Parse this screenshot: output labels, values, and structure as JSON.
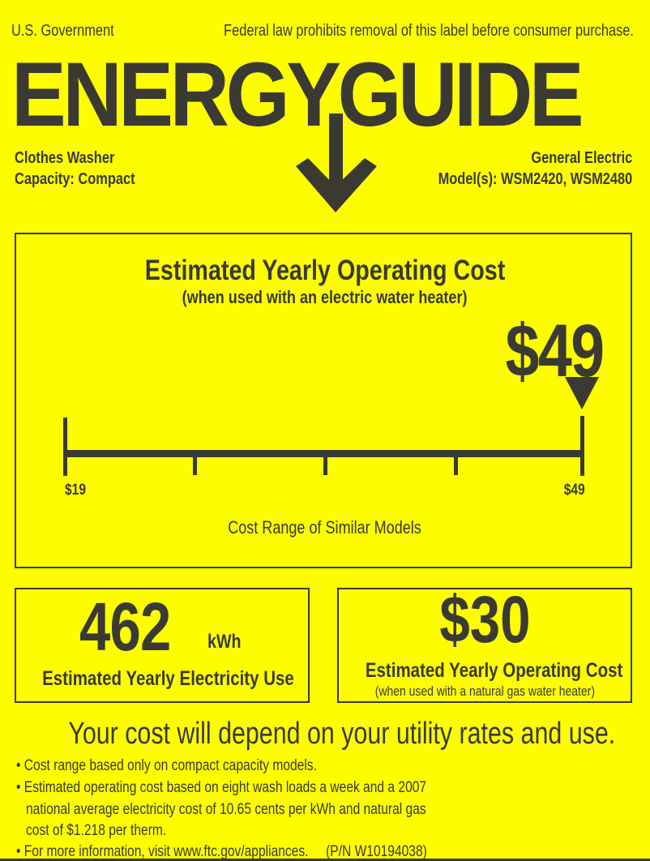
{
  "header": {
    "government": "U.S. Government",
    "notice": "Federal law prohibits removal of this label before consumer purchase.",
    "title": "ENERGYGUIDE"
  },
  "product": {
    "type": "Clothes Washer",
    "capacity": "Capacity: Compact",
    "brand": "General Electric",
    "models": "Model(s): WSM2420, WSM2480"
  },
  "cost_panel": {
    "title": "Estimated Yearly Operating Cost",
    "subtitle": "(when used with an electric water heater)",
    "value": "$49",
    "range_min_label": "$19",
    "range_max_label": "$49",
    "range_min": 19,
    "range_max": 49,
    "marker_value": 49,
    "range_caption": "Cost Range of Similar Models"
  },
  "electricity": {
    "value": "462",
    "unit": "kWh",
    "label": "Estimated Yearly Electricity Use"
  },
  "gas_cost": {
    "value": "$30",
    "label": "Estimated Yearly Operating Cost",
    "sublabel": "(when used with a natural gas water heater)"
  },
  "tagline": "Your cost will depend on your utility rates and use.",
  "notes": [
    "Cost range based only on compact capacity models.",
    "Estimated operating cost based on eight wash loads a week and a 2007",
    "national average electricity cost of 10.65 cents per kWh and natural gas",
    "cost of  $1.218 per therm.",
    "For more information, visit www.ftc.gov/appliances.     (P/N W10194038)"
  ],
  "colors": {
    "background": "#fdfd00",
    "ink": "#3a3a32"
  }
}
